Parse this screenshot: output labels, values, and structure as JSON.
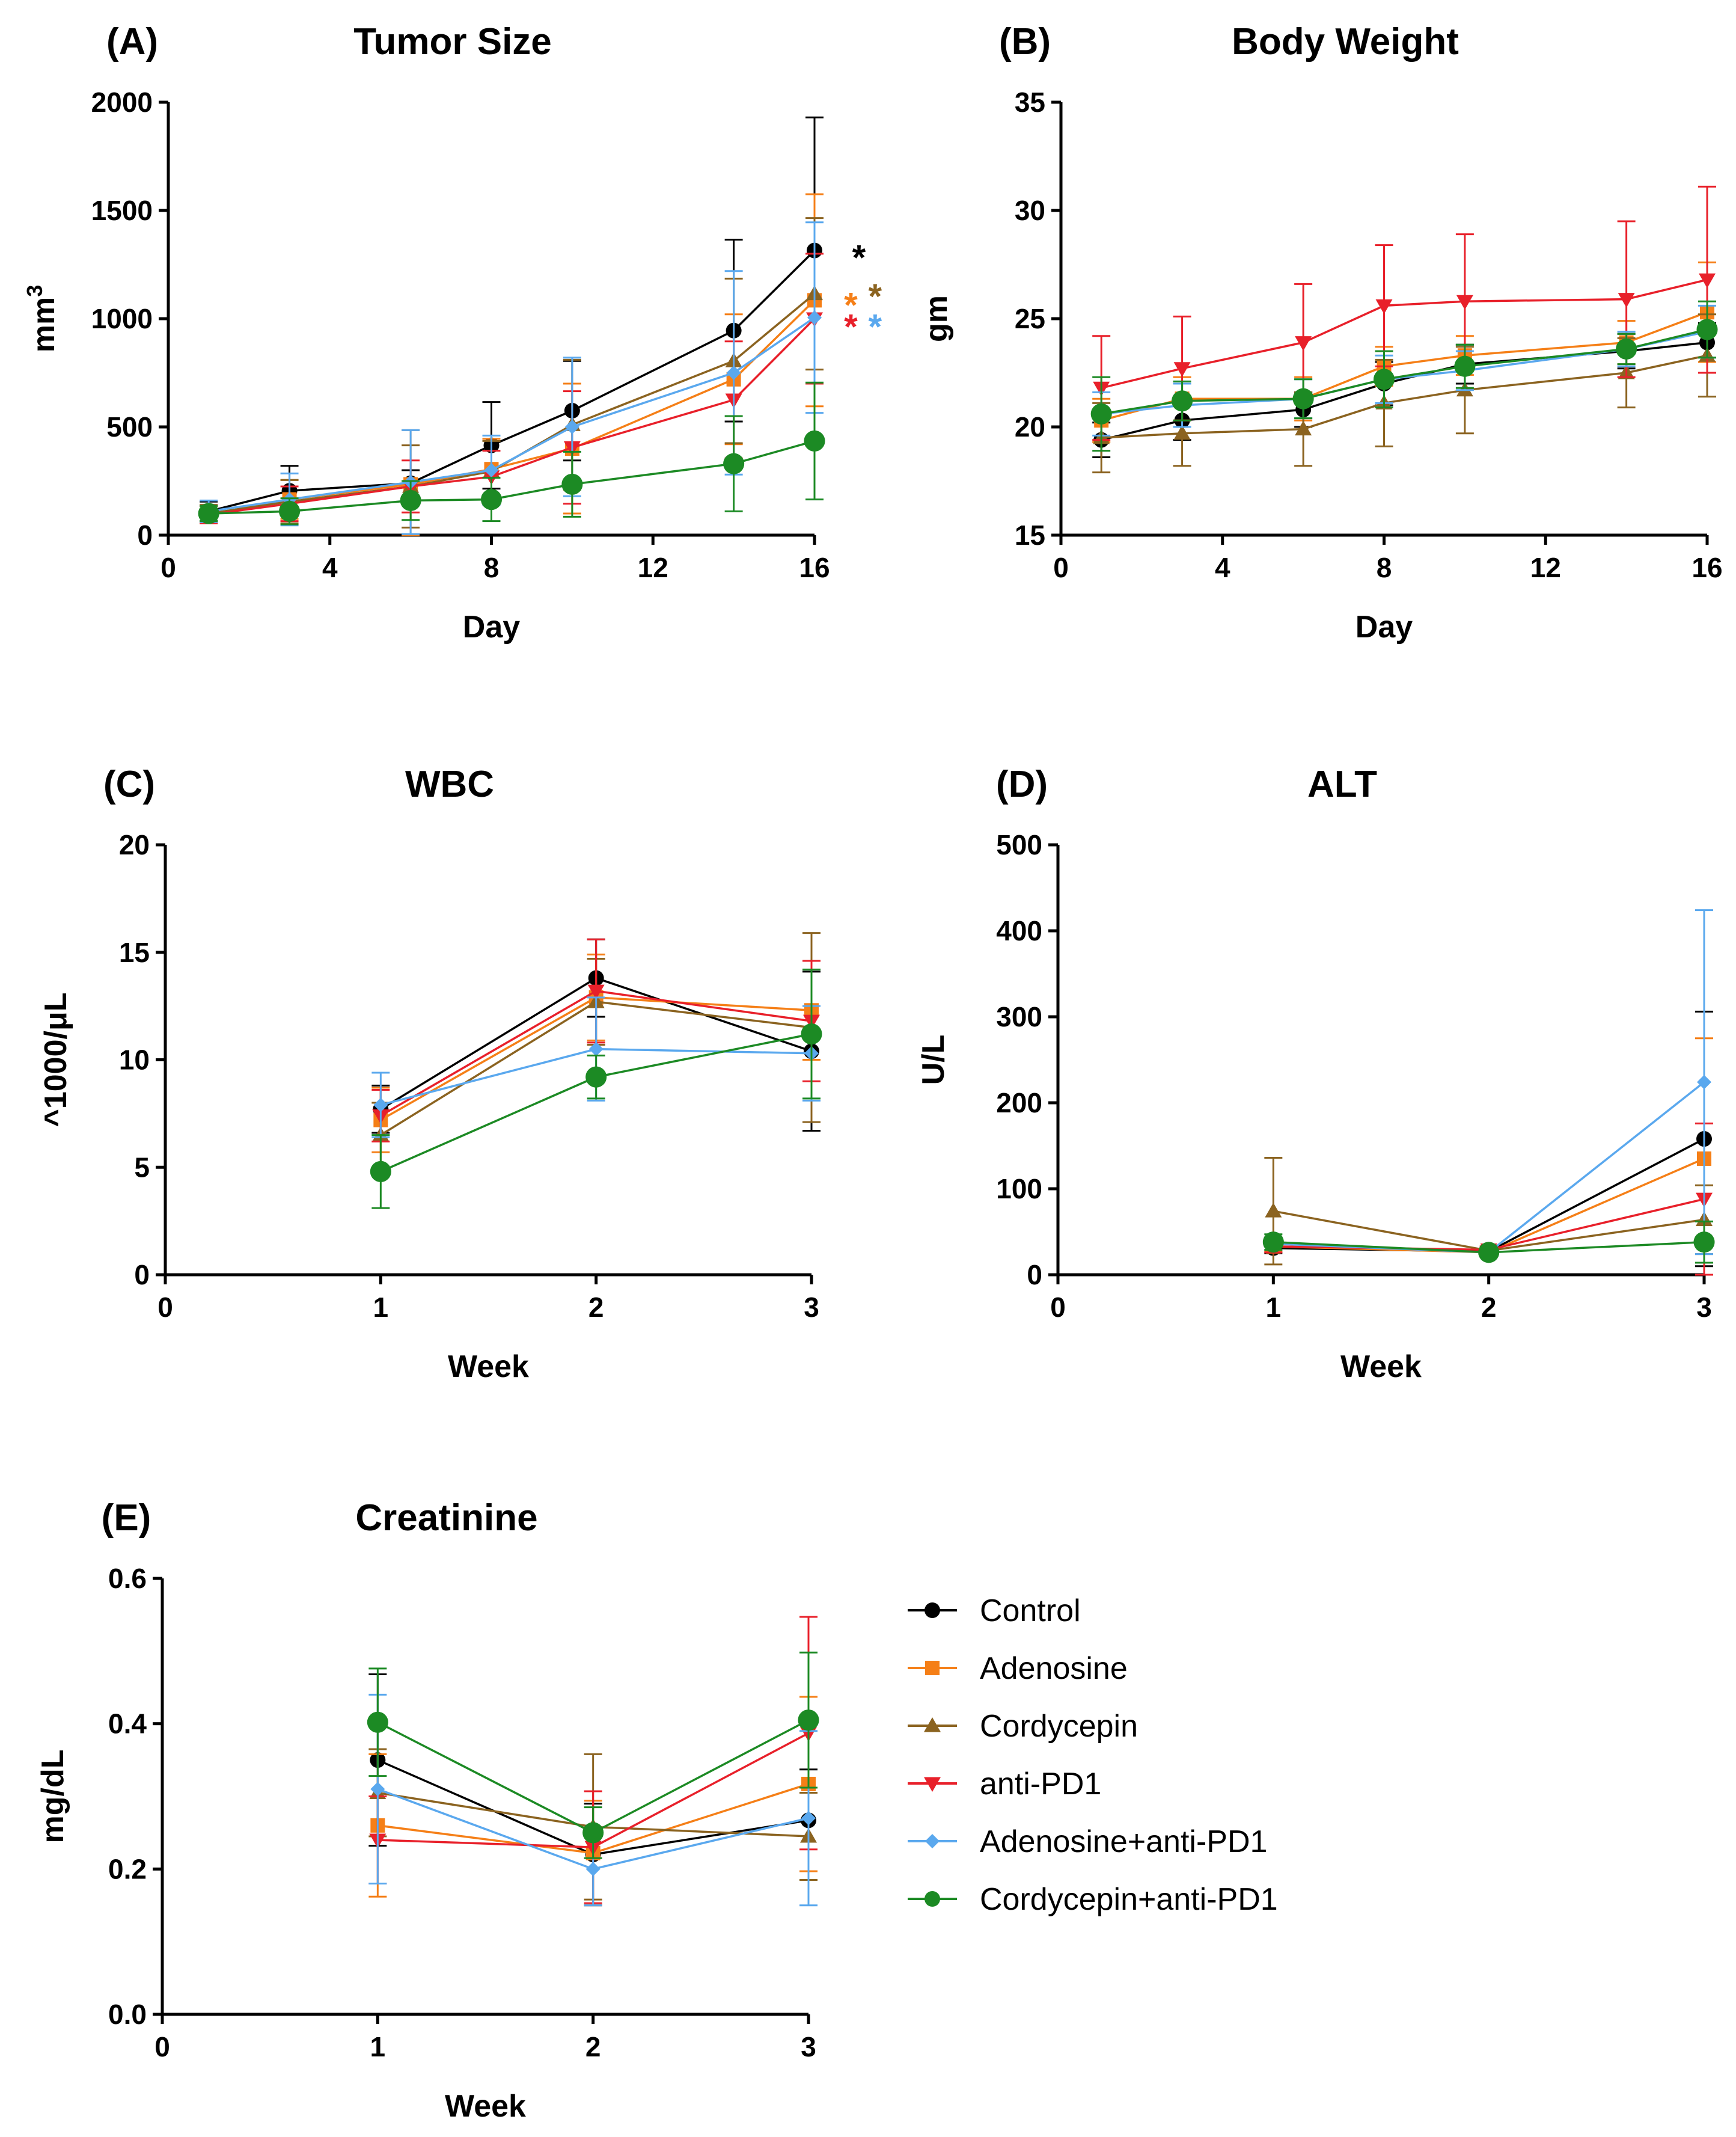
{
  "series_style": {
    "Control": {
      "color": "#000000",
      "marker": "circle"
    },
    "Adenosine": {
      "color": "#f57f17",
      "marker": "square"
    },
    "Cordycepin": {
      "color": "#8b6320",
      "marker": "triangle-up"
    },
    "anti-PD1": {
      "color": "#e8202a",
      "marker": "triangle-down"
    },
    "Adenosine+anti-PD1": {
      "color": "#5aa8ee",
      "marker": "diamond"
    },
    "Cordycepin+anti-PD1": {
      "color": "#1c8a24",
      "marker": "circle"
    }
  },
  "legend": {
    "items": [
      "Control",
      "Adenosine",
      "Cordycepin",
      "anti-PD1",
      "Adenosine+anti-PD1",
      "Cordycepin+anti-PD1"
    ]
  },
  "chart_data": [
    {
      "id": "A",
      "letter": "(A)",
      "type": "line",
      "title": "Tumor Size",
      "xlabel": "Day",
      "ylabel": "mm",
      "ylabel_sup": "3",
      "xlim": [
        0,
        16
      ],
      "ylim": [
        0,
        2000
      ],
      "xticks": [
        0,
        4,
        8,
        12,
        16
      ],
      "yticks": [
        0,
        500,
        1000,
        1500,
        2000
      ],
      "x": [
        1,
        3,
        6,
        8,
        10,
        14,
        16
      ],
      "series": [
        {
          "name": "Control",
          "values": [
            110,
            205,
            240,
            415,
            575,
            945,
            1315
          ],
          "err": [
            45,
            115,
            60,
            200,
            230,
            420,
            615
          ]
        },
        {
          "name": "Adenosine",
          "values": [
            95,
            165,
            235,
            305,
            400,
            720,
            1085
          ],
          "err": [
            40,
            90,
            250,
            140,
            300,
            300,
            490
          ]
        },
        {
          "name": "Cordycepin",
          "values": [
            100,
            155,
            225,
            295,
            510,
            805,
            1115
          ],
          "err": [
            40,
            100,
            190,
            140,
            300,
            380,
            350
          ]
        },
        {
          "name": "anti-PD1",
          "values": [
            95,
            145,
            225,
            270,
            405,
            625,
            1000
          ],
          "err": [
            40,
            80,
            120,
            120,
            260,
            270,
            300
          ]
        },
        {
          "name": "Adenosine+anti-PD1",
          "values": [
            110,
            165,
            245,
            300,
            500,
            750,
            1005
          ],
          "err": [
            50,
            120,
            240,
            160,
            320,
            470,
            440
          ]
        },
        {
          "name": "Cordycepin+anti-PD1",
          "values": [
            100,
            110,
            160,
            165,
            235,
            330,
            435
          ],
          "err": [
            35,
            60,
            90,
            100,
            150,
            220,
            270
          ]
        }
      ],
      "annotations": [
        {
          "text": "*",
          "series": "Control",
          "x": 17.1,
          "y": 1310
        },
        {
          "text": "*",
          "series": "Adenosine",
          "x": 16.9,
          "y": 1090
        },
        {
          "text": "*",
          "series": "Cordycepin",
          "x": 17.5,
          "y": 1130
        },
        {
          "text": "*",
          "series": "anti-PD1",
          "x": 16.9,
          "y": 990
        },
        {
          "text": "*",
          "series": "Adenosine+anti-PD1",
          "x": 17.5,
          "y": 990
        }
      ]
    },
    {
      "id": "B",
      "letter": "(B)",
      "type": "line",
      "title": "Body Weight",
      "xlabel": "Day",
      "ylabel": "gm",
      "xlim": [
        0,
        16
      ],
      "ylim": [
        15,
        35
      ],
      "xticks": [
        0,
        4,
        8,
        12,
        16
      ],
      "yticks": [
        15,
        20,
        25,
        30,
        35
      ],
      "x": [
        1,
        3,
        6,
        8,
        10,
        14,
        16
      ],
      "series": [
        {
          "name": "Control",
          "values": [
            19.4,
            20.3,
            20.8,
            22.0,
            22.9,
            23.5,
            23.9
          ],
          "err": [
            0.8,
            0.9,
            0.8,
            1.0,
            0.9,
            0.8,
            0.9
          ]
        },
        {
          "name": "Adenosine",
          "values": [
            20.3,
            21.3,
            21.3,
            22.8,
            23.3,
            23.9,
            25.3
          ],
          "err": [
            1.0,
            1.0,
            1.0,
            0.9,
            0.9,
            1.0,
            2.3
          ]
        },
        {
          "name": "Cordycepin",
          "values": [
            19.5,
            19.7,
            19.9,
            21.1,
            21.7,
            22.5,
            23.3
          ],
          "err": [
            1.6,
            1.5,
            1.7,
            2.0,
            2.0,
            1.6,
            1.9
          ]
        },
        {
          "name": "anti-PD1",
          "values": [
            21.8,
            22.7,
            23.9,
            25.6,
            25.8,
            25.9,
            26.8
          ],
          "err": [
            2.4,
            2.4,
            2.7,
            2.8,
            3.1,
            3.6,
            4.3
          ]
        },
        {
          "name": "Adenosine+anti-PD1",
          "values": [
            20.6,
            21.0,
            21.3,
            22.2,
            22.6,
            23.6,
            24.4
          ],
          "err": [
            1.0,
            1.0,
            0.9,
            1.1,
            0.9,
            0.8,
            1.2
          ]
        },
        {
          "name": "Cordycepin+anti-PD1",
          "values": [
            20.6,
            21.2,
            21.3,
            22.2,
            22.8,
            23.6,
            24.5
          ],
          "err": [
            1.7,
            0.9,
            0.9,
            1.3,
            1.0,
            0.7,
            1.3
          ]
        }
      ]
    },
    {
      "id": "C",
      "letter": "(C)",
      "type": "line",
      "title": "WBC",
      "xlabel": "Week",
      "ylabel": "^1000/μL",
      "xlim": [
        0,
        3
      ],
      "ylim": [
        0,
        20
      ],
      "xticks": [
        0,
        1,
        2,
        3
      ],
      "yticks": [
        0,
        5,
        10,
        15,
        20
      ],
      "x": [
        1,
        2,
        3
      ],
      "series": [
        {
          "name": "Control",
          "values": [
            7.7,
            13.8,
            10.4
          ],
          "err": [
            1.1,
            1.8,
            3.7
          ]
        },
        {
          "name": "Adenosine",
          "values": [
            7.2,
            12.9,
            12.3
          ],
          "err": [
            1.5,
            2.0,
            2.3
          ]
        },
        {
          "name": "Cordycepin",
          "values": [
            6.5,
            12.7,
            11.5
          ],
          "err": [
            1.5,
            2.0,
            4.4
          ]
        },
        {
          "name": "anti-PD1",
          "values": [
            7.4,
            13.2,
            11.8
          ],
          "err": [
            1.2,
            2.4,
            2.8
          ]
        },
        {
          "name": "Adenosine+anti-PD1",
          "values": [
            7.9,
            10.5,
            10.3
          ],
          "err": [
            1.5,
            2.4,
            2.2
          ]
        },
        {
          "name": "Cordycepin+anti-PD1",
          "values": [
            4.8,
            9.2,
            11.2
          ],
          "err": [
            1.7,
            1.0,
            3.0
          ]
        }
      ]
    },
    {
      "id": "D",
      "letter": "(D)",
      "type": "line",
      "title": "ALT",
      "xlabel": "Week",
      "ylabel": "U/L",
      "xlim": [
        0,
        3
      ],
      "ylim": [
        0,
        500
      ],
      "xticks": [
        0,
        1,
        2,
        3
      ],
      "yticks": [
        0,
        100,
        200,
        300,
        400,
        500
      ],
      "x": [
        1,
        2,
        3
      ],
      "series": [
        {
          "name": "Control",
          "values": [
            31,
            27,
            158
          ],
          "err": [
            6,
            4,
            148
          ]
        },
        {
          "name": "Adenosine",
          "values": [
            33,
            26,
            135
          ],
          "err": [
            6,
            4,
            140
          ]
        },
        {
          "name": "Cordycepin",
          "values": [
            74,
            28,
            64
          ],
          "err": [
            62,
            4,
            40
          ]
        },
        {
          "name": "anti-PD1",
          "values": [
            33,
            29,
            88
          ],
          "err": [
            7,
            4,
            88
          ]
        },
        {
          "name": "Adenosine+anti-PD1",
          "values": [
            36,
            26,
            224
          ],
          "err": [
            7,
            4,
            200
          ]
        },
        {
          "name": "Cordycepin+anti-PD1",
          "values": [
            38,
            26,
            38
          ],
          "err": [
            9,
            4,
            24
          ]
        }
      ]
    },
    {
      "id": "E",
      "letter": "(E)",
      "type": "line",
      "title": "Creatinine",
      "xlabel": "Week",
      "ylabel": "mg/dL",
      "xlim": [
        0,
        3
      ],
      "ylim": [
        0.0,
        0.6
      ],
      "xticks": [
        0,
        1,
        2,
        3
      ],
      "yticks": [
        0.0,
        0.2,
        0.4,
        0.6
      ],
      "ytick_decimals": 1,
      "x": [
        1,
        2,
        3
      ],
      "series": [
        {
          "name": "Control",
          "values": [
            0.35,
            0.22,
            0.267
          ],
          "err": [
            0.118,
            0.07,
            0.07
          ]
        },
        {
          "name": "Adenosine",
          "values": [
            0.26,
            0.222,
            0.317
          ],
          "err": [
            0.098,
            0.072,
            0.12
          ]
        },
        {
          "name": "Cordycepin",
          "values": [
            0.305,
            0.258,
            0.245
          ],
          "err": [
            0.06,
            0.1,
            0.06
          ]
        },
        {
          "name": "anti-PD1",
          "values": [
            0.24,
            0.23,
            0.387
          ],
          "err": [
            0.06,
            0.077,
            0.16
          ]
        },
        {
          "name": "Adenosine+anti-PD1",
          "values": [
            0.31,
            0.2,
            0.27
          ],
          "err": [
            0.13,
            0.05,
            0.12
          ]
        },
        {
          "name": "Cordycepin+anti-PD1",
          "values": [
            0.402,
            0.25,
            0.405
          ],
          "err": [
            0.074,
            0.035,
            0.093
          ]
        }
      ]
    }
  ]
}
